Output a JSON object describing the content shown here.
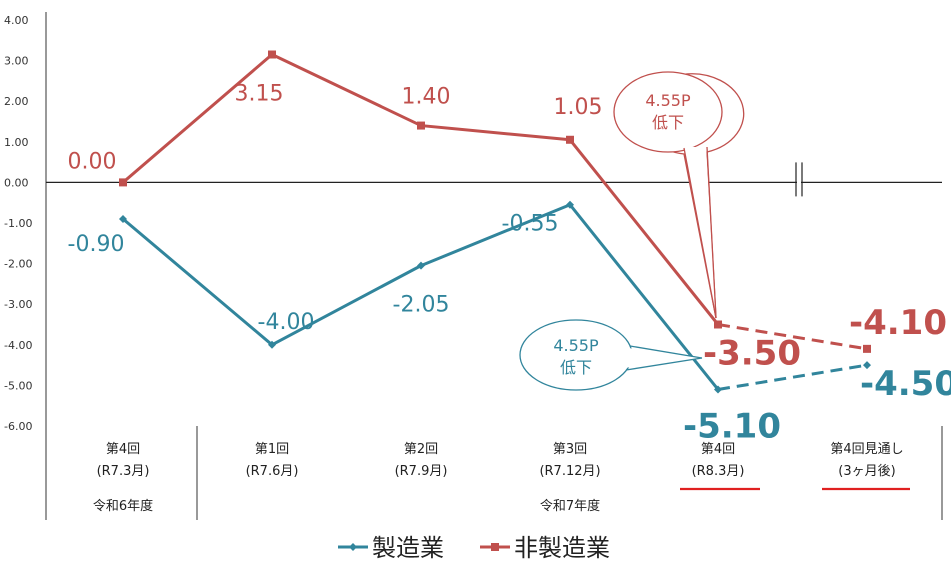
{
  "chart_data": {
    "type": "line",
    "yticks": [
      "4.00",
      "3.00",
      "2.00",
      "1.00",
      "0.00",
      "-1.00",
      "-2.00",
      "-3.00",
      "-4.00",
      "-5.00",
      "-6.00"
    ],
    "ylim": [
      -6,
      4
    ],
    "grid": false,
    "legend_position": "bottom",
    "categories": [
      {
        "line1": "第4回",
        "line2": "(R7.3月)"
      },
      {
        "line1": "第1回",
        "line2": "(R7.6月)"
      },
      {
        "line1": "第2回",
        "line2": "(R7.9月)"
      },
      {
        "line1": "第3回",
        "line2": "(R7.12月)"
      },
      {
        "line1": "第4回",
        "line2": "(R8.3月)"
      },
      {
        "line1": "第4回見通し",
        "line2": "(3ヶ月後)"
      }
    ],
    "fiscal_years": [
      {
        "label": "令和6年度"
      },
      {
        "label": "令和7年度"
      }
    ],
    "series": [
      {
        "name": "製造業",
        "color": "#31859c",
        "values": [
          -0.9,
          -4.0,
          -2.05,
          -0.55,
          -5.1,
          -4.5
        ],
        "labels": [
          "-0.90",
          "-4.00",
          "-2.05",
          "-0.55",
          "-5.10",
          "-4.50"
        ]
      },
      {
        "name": "非製造業",
        "color": "#c0504d",
        "values": [
          0.0,
          3.15,
          1.4,
          1.05,
          -3.5,
          -4.1
        ],
        "labels": [
          "0.00",
          "3.15",
          "1.40",
          "1.05",
          "-3.50",
          "-4.10"
        ]
      }
    ],
    "annotations": [
      {
        "line1": "4.55P",
        "line2": "低下",
        "color": "#c0504d"
      },
      {
        "line1": "4.55P",
        "line2": "低下",
        "color": "#31859c"
      }
    ]
  }
}
